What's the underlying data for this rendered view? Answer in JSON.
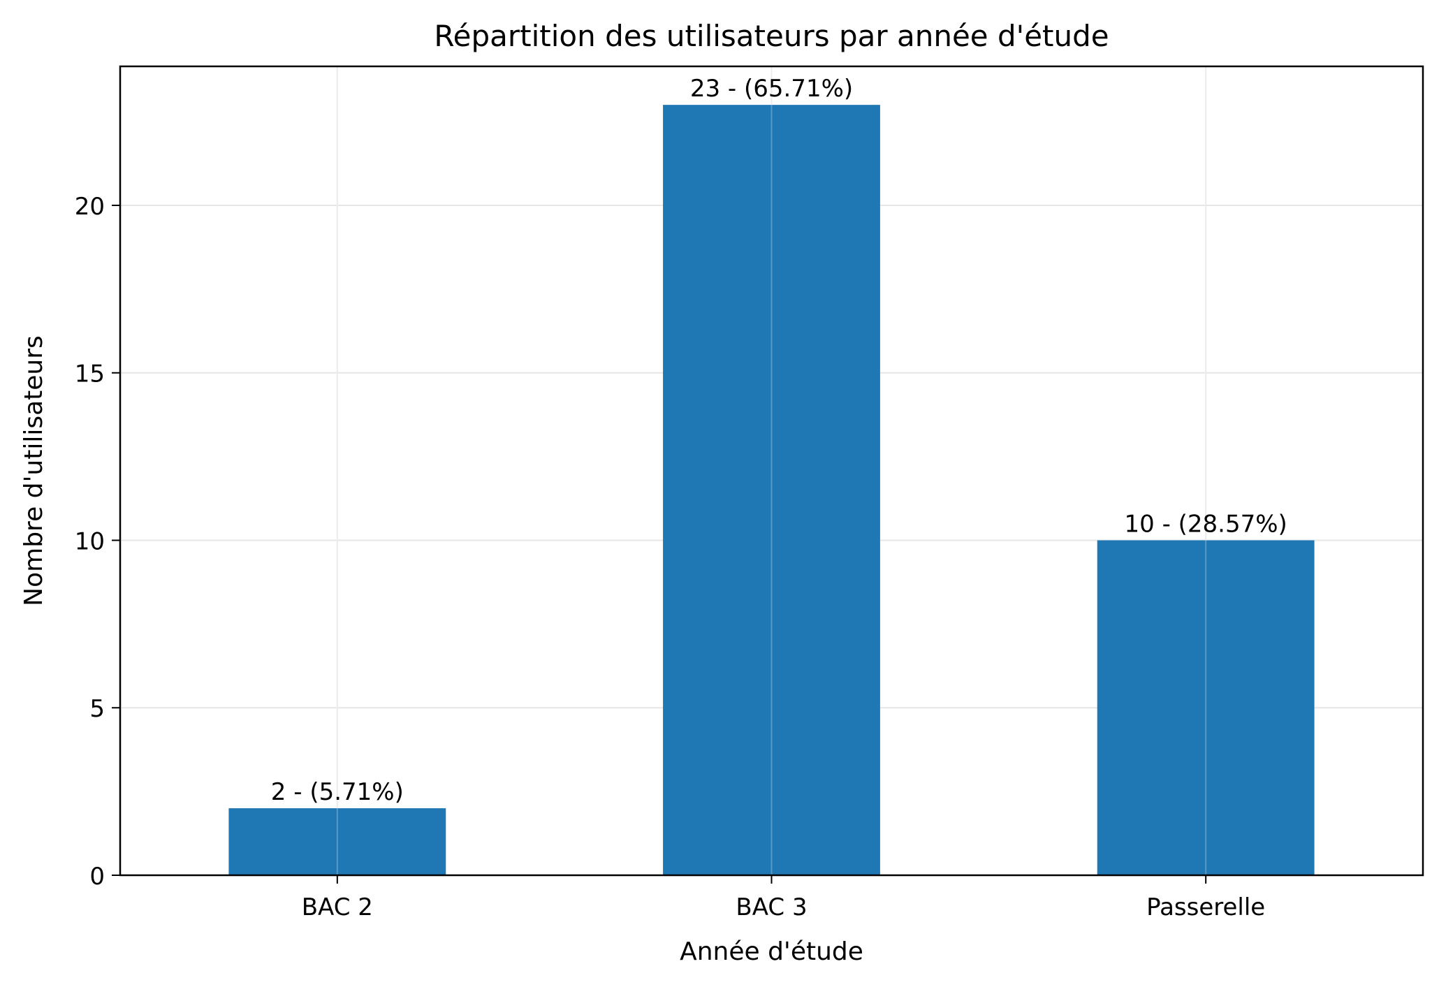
{
  "chart_data": {
    "type": "bar",
    "title": "Répartition des utilisateurs par année d'étude",
    "xlabel": "Année d'étude",
    "ylabel": "Nombre d'utilisateurs",
    "categories": [
      "BAC 2",
      "BAC 3",
      "Passerelle"
    ],
    "values": [
      2,
      23,
      10
    ],
    "data_labels": [
      "2 - (5.71%)",
      "23 - (65.71%)",
      "10 - (28.57%)"
    ],
    "ylim": [
      0,
      24.15
    ],
    "yticks": [
      0,
      5,
      10,
      15,
      20
    ],
    "ytick_labels": [
      "0",
      "5",
      "10",
      "15",
      "20"
    ],
    "grid": true,
    "legend": "none",
    "colors": {
      "bar": "#1f77b4",
      "grid": "#e6e6e6",
      "axes": "#000000"
    }
  }
}
